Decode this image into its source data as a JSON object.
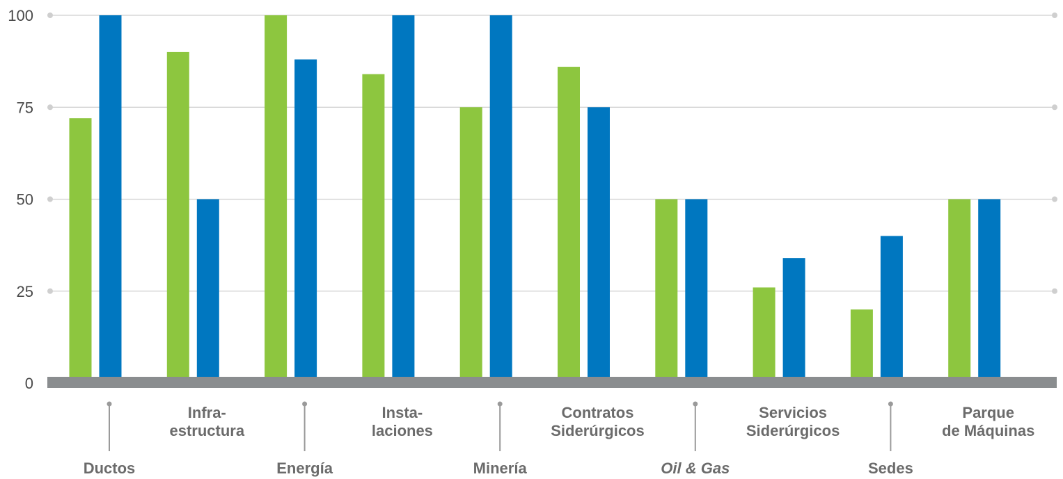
{
  "chart_data": {
    "type": "bar",
    "categories": [
      {
        "lines": [
          "Ductos"
        ],
        "row": "lower",
        "italic": false
      },
      {
        "lines": [
          "Infra-",
          "estructura"
        ],
        "row": "upper",
        "italic": false
      },
      {
        "lines": [
          "Energía"
        ],
        "row": "lower",
        "italic": false
      },
      {
        "lines": [
          "Insta-",
          "laciones"
        ],
        "row": "upper",
        "italic": false
      },
      {
        "lines": [
          "Minería"
        ],
        "row": "lower",
        "italic": false
      },
      {
        "lines": [
          "Contratos",
          "Siderúrgicos"
        ],
        "row": "upper",
        "italic": false
      },
      {
        "lines": [
          "Oil & Gas"
        ],
        "row": "lower",
        "italic": true
      },
      {
        "lines": [
          "Servicios",
          "Siderúrgicos"
        ],
        "row": "upper",
        "italic": false
      },
      {
        "lines": [
          "Sedes"
        ],
        "row": "lower",
        "italic": false
      },
      {
        "lines": [
          "Parque",
          "de Máquinas"
        ],
        "row": "upper",
        "italic": false
      }
    ],
    "series": [
      {
        "color": "#8dc63f",
        "values": [
          72,
          90,
          100,
          84,
          75,
          86,
          50,
          26,
          20,
          50
        ]
      },
      {
        "color": "#0077c0",
        "values": [
          100,
          50,
          88,
          100,
          100,
          75,
          50,
          34,
          40,
          50
        ]
      }
    ],
    "yticks": [
      "0",
      "25",
      "50",
      "75",
      "100"
    ],
    "ylim": [
      0,
      100
    ],
    "grid": true,
    "colors": {
      "grid": "#cfcfcf",
      "axis_bar": "#8a8d8f",
      "connector": "#9a9a9a",
      "tick_text": "#4a4a4a",
      "category_text": "#6b6b6b"
    }
  }
}
